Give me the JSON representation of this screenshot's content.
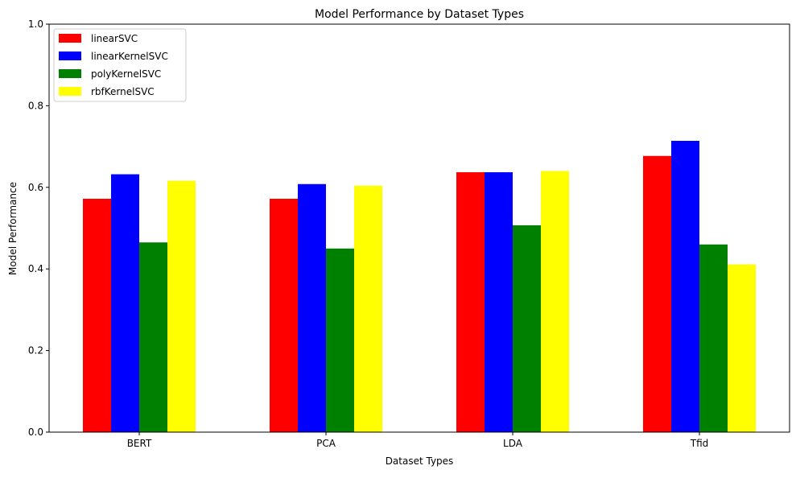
{
  "chart_data": {
    "type": "bar",
    "title": "Model Performance by Dataset Types",
    "xlabel": "Dataset Types",
    "ylabel": "Model Performance",
    "categories": [
      "BERT",
      "PCA",
      "LDA",
      "Tfid"
    ],
    "ylim": [
      0,
      1.0
    ],
    "yticks": [
      "0.0",
      "0.2",
      "0.4",
      "0.6",
      "0.8",
      "1.0"
    ],
    "grid": false,
    "legend_position": "top-left",
    "series": [
      {
        "name": "linearSVC",
        "color": "#ff0000",
        "values": [
          0.572,
          0.572,
          0.637,
          0.677
        ]
      },
      {
        "name": "linearKernelSVC",
        "color": "#0000ff",
        "values": [
          0.632,
          0.608,
          0.637,
          0.714
        ]
      },
      {
        "name": "polyKernelSVC",
        "color": "#008000",
        "values": [
          0.465,
          0.45,
          0.507,
          0.46
        ]
      },
      {
        "name": "rbfKernelSVC",
        "color": "#ffff00",
        "values": [
          0.616,
          0.604,
          0.64,
          0.411
        ]
      }
    ]
  }
}
